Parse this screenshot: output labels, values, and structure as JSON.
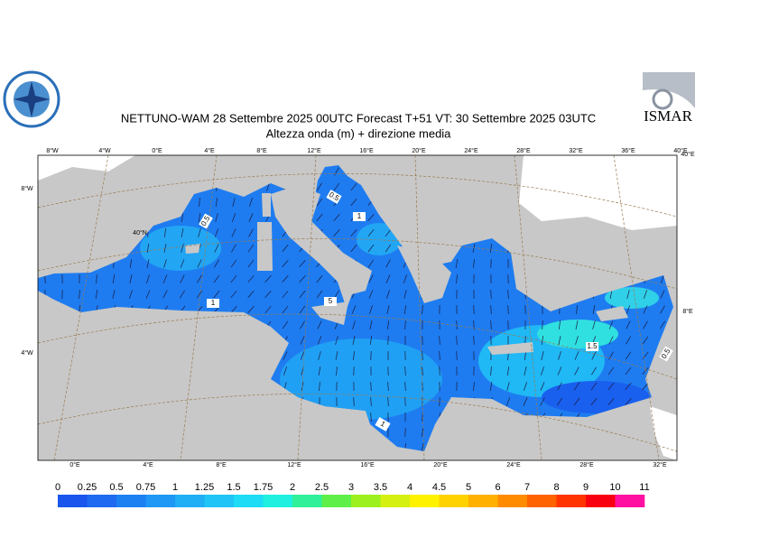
{
  "header": {
    "title": "NETTUNO-WAM  28 Settembre 2025 00UTC Forecast T+51 VT: 30 Settembre 2025 03UTC",
    "subtitle": "Altezza onda (m) + direzione media",
    "logo_right": "ISMAR"
  },
  "map": {
    "lon_labels_top": [
      "8°W",
      "4°W",
      "0°E",
      "4°E",
      "8°E",
      "12°E",
      "16°E",
      "20°E",
      "24°E",
      "28°E",
      "32°E",
      "36°E",
      "40°E"
    ],
    "lon_labels_bottom": [
      "0°E",
      "4°E",
      "8°E",
      "12°E",
      "16°E",
      "20°E",
      "24°E",
      "28°E",
      "32°E"
    ],
    "lat_labels_left": [
      "8°W",
      "40°N",
      "4°W"
    ],
    "lat_labels_right": [
      "40°E",
      "8°E"
    ],
    "contour_labels": [
      "0.5",
      "1",
      "0.5",
      "1",
      "5",
      "1.5",
      "0.5",
      "1"
    ]
  },
  "legend": {
    "levels": [
      0,
      0.25,
      0.5,
      0.75,
      1,
      1.25,
      1.5,
      1.75,
      2,
      2.5,
      3,
      3.5,
      4,
      4.5,
      5,
      6,
      7,
      8,
      9,
      10,
      11
    ],
    "colors": [
      "#1a55ee",
      "#1e6af0",
      "#1c80f2",
      "#1e98f4",
      "#20aef5",
      "#20c4f6",
      "#1edcf6",
      "#20f0e0",
      "#30f09a",
      "#5ef048",
      "#9cf01e",
      "#d4f010",
      "#fff200",
      "#ffd200",
      "#ffb000",
      "#ff8c00",
      "#ff6200",
      "#ff3400",
      "#f80010",
      "#ff10a0"
    ]
  }
}
